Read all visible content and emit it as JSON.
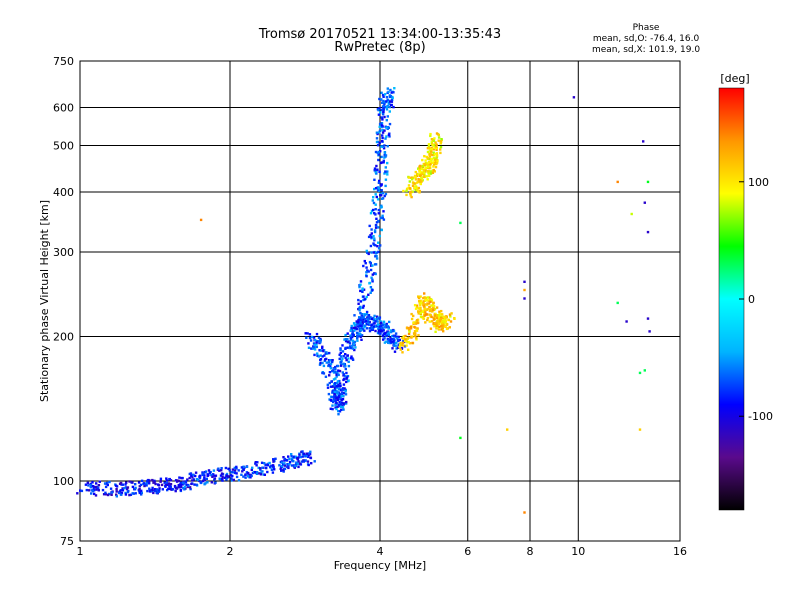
{
  "chart_data": {
    "type": "scatter",
    "title": "Tromsø 20170521 13:34:00-13:35:43",
    "subtitle": "RwPretec (8p)",
    "xlabel": "Frequency [MHz]",
    "ylabel": "Stationary phase Virtual Height [km]",
    "x_scale": "log",
    "y_scale": "log",
    "xlim": [
      1,
      16
    ],
    "ylim": [
      75,
      750
    ],
    "x_ticks": [
      1,
      2,
      4,
      6,
      8,
      10,
      16
    ],
    "y_ticks": [
      75,
      100,
      200,
      300,
      400,
      500,
      600,
      750
    ],
    "grid": true,
    "phase_legend": {
      "title": "Phase",
      "line_o": "mean, sd,O: -76.4, 16.0",
      "line_x": "mean, sd,X: 101.9, 19.0"
    },
    "colorbar": {
      "label": "[deg]",
      "range": [
        -180,
        180
      ],
      "ticks": [
        100,
        0,
        -100
      ],
      "colors": [
        "#000000",
        "#5a0a8c",
        "#0000ff",
        "#00b4ff",
        "#00ffff",
        "#00ff00",
        "#ffff00",
        "#ff9600",
        "#ff0000"
      ]
    },
    "traces": [
      {
        "name": "",
        "phase": -90,
        "points": [
          [
            1.02,
            97
          ],
          [
            1.2,
            96
          ],
          [
            1.35,
            97
          ],
          [
            1.5,
            98
          ],
          [
            1.65,
            99
          ]
        ]
      },
      {
        "name": "",
        "phase": -80,
        "points": [
          [
            1.65,
            100
          ],
          [
            1.85,
            102
          ],
          [
            2.1,
            104
          ],
          [
            2.4,
            107
          ],
          [
            2.7,
            110
          ],
          [
            2.9,
            112
          ]
        ]
      },
      {
        "name": "",
        "phase": -75,
        "points": [
          [
            2.9,
            200
          ],
          [
            3.1,
            180
          ],
          [
            3.25,
            155
          ],
          [
            3.3,
            142
          ],
          [
            3.35,
            160
          ],
          [
            3.45,
            190
          ],
          [
            3.6,
            210
          ],
          [
            3.8,
            215
          ],
          [
            4.0,
            210
          ],
          [
            4.2,
            200
          ],
          [
            4.4,
            190
          ]
        ]
      },
      {
        "name": "",
        "phase": -70,
        "points": [
          [
            3.6,
            200
          ],
          [
            3.75,
            250
          ],
          [
            3.9,
            320
          ],
          [
            4.0,
            400
          ],
          [
            4.05,
            500
          ],
          [
            4.1,
            600
          ],
          [
            4.15,
            640
          ]
        ]
      },
      {
        "name": "",
        "phase": 110,
        "points": [
          [
            4.5,
            190
          ],
          [
            4.7,
            210
          ],
          [
            4.9,
            240
          ],
          [
            5.1,
            220
          ],
          [
            5.3,
            210
          ],
          [
            5.5,
            220
          ]
        ]
      },
      {
        "name": "",
        "phase": 100,
        "points": [
          [
            4.6,
            400
          ],
          [
            4.8,
            430
          ],
          [
            5.0,
            450
          ],
          [
            5.1,
            480
          ],
          [
            5.2,
            520
          ]
        ]
      }
    ],
    "outliers": [
      {
        "x": 1.75,
        "y": 350,
        "phase": 140
      },
      {
        "x": 9.8,
        "y": 630,
        "phase": -110
      },
      {
        "x": 7.8,
        "y": 260,
        "phase": -110
      },
      {
        "x": 7.8,
        "y": 250,
        "phase": 130
      },
      {
        "x": 7.8,
        "y": 240,
        "phase": -110
      },
      {
        "x": 7.2,
        "y": 128,
        "phase": 110
      },
      {
        "x": 7.8,
        "y": 86,
        "phase": 140
      },
      {
        "x": 5.8,
        "y": 345,
        "phase": 30
      },
      {
        "x": 5.8,
        "y": 123,
        "phase": 40
      },
      {
        "x": 12.0,
        "y": 420,
        "phase": 140
      },
      {
        "x": 12.8,
        "y": 360,
        "phase": 80
      },
      {
        "x": 13.8,
        "y": 420,
        "phase": 40
      },
      {
        "x": 13.5,
        "y": 510,
        "phase": -110
      },
      {
        "x": 13.6,
        "y": 380,
        "phase": -110
      },
      {
        "x": 13.8,
        "y": 330,
        "phase": -110
      },
      {
        "x": 13.8,
        "y": 218,
        "phase": -110
      },
      {
        "x": 13.9,
        "y": 205,
        "phase": -110
      },
      {
        "x": 12.5,
        "y": 215,
        "phase": -110
      },
      {
        "x": 12.0,
        "y": 235,
        "phase": 30
      },
      {
        "x": 13.3,
        "y": 168,
        "phase": 30
      },
      {
        "x": 13.6,
        "y": 170,
        "phase": 30
      },
      {
        "x": 13.3,
        "y": 128,
        "phase": 110
      }
    ]
  }
}
